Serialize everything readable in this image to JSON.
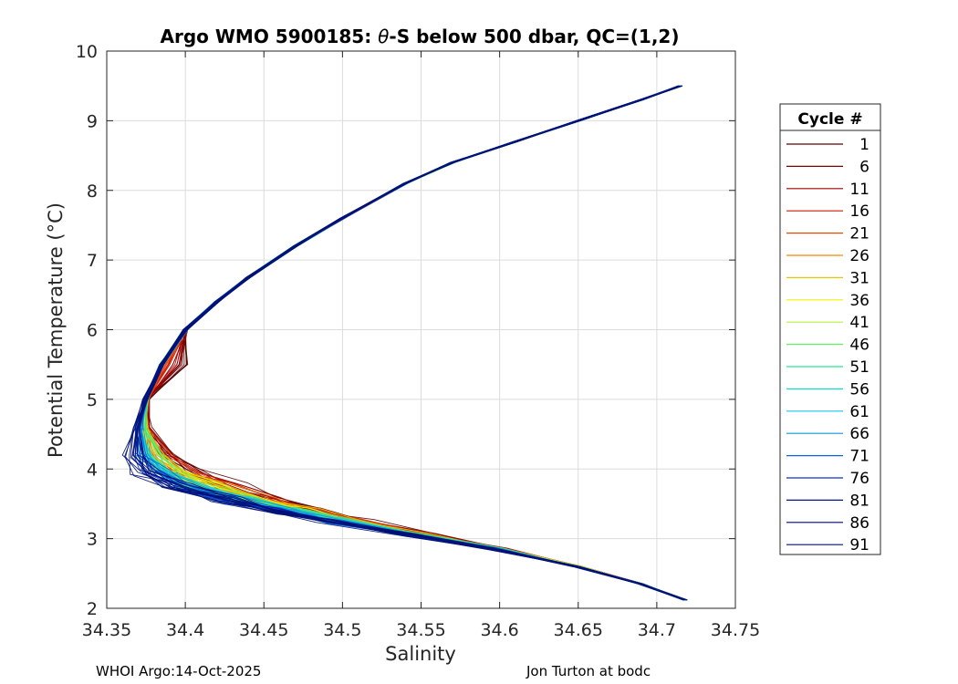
{
  "chart_data": {
    "type": "line",
    "title_prefix": "Argo WMO 5900185: ",
    "title_theta": "θ",
    "title_suffix": "-S below 500 dbar,  QC=(1,2)",
    "xlabel": "Salinity",
    "ylabel": "Potential Temperature (°C)",
    "xlim": [
      34.35,
      34.75
    ],
    "ylim": [
      2,
      10
    ],
    "xticks": [
      "34.35",
      "34.4",
      "34.45",
      "34.5",
      "34.55",
      "34.6",
      "34.65",
      "34.7",
      "34.75"
    ],
    "yticks": [
      "2",
      "3",
      "4",
      "5",
      "6",
      "7",
      "8",
      "9",
      "10"
    ],
    "grid": true,
    "legend_title": "Cycle #",
    "legend_position": "outside-right",
    "series": [
      {
        "name": "1",
        "color": "#5a0000"
      },
      {
        "name": "6",
        "color": "#7a0000"
      },
      {
        "name": "11",
        "color": "#a00000"
      },
      {
        "name": "16",
        "color": "#cc1a00"
      },
      {
        "name": "21",
        "color": "#e84a00"
      },
      {
        "name": "26",
        "color": "#f08c00"
      },
      {
        "name": "31",
        "color": "#e6c800"
      },
      {
        "name": "36",
        "color": "#f2f000"
      },
      {
        "name": "41",
        "color": "#b4f03c"
      },
      {
        "name": "46",
        "color": "#64f064"
      },
      {
        "name": "51",
        "color": "#28e896"
      },
      {
        "name": "56",
        "color": "#14dcc8"
      },
      {
        "name": "61",
        "color": "#14c8e6"
      },
      {
        "name": "66",
        "color": "#0a96dc"
      },
      {
        "name": "71",
        "color": "#0a64dc"
      },
      {
        "name": "76",
        "color": "#0a32c8"
      },
      {
        "name": "81",
        "color": "#00148c"
      },
      {
        "name": "86",
        "color": "#000a6e"
      },
      {
        "name": "91",
        "color": "#001478"
      }
    ],
    "mean_profile": {
      "salinity": [
        34.715,
        34.69,
        34.65,
        34.61,
        34.57,
        34.54,
        34.5,
        34.47,
        34.44,
        34.42,
        34.4,
        34.385,
        34.375,
        34.372,
        34.378,
        34.39,
        34.41,
        34.44,
        34.47,
        34.5,
        34.55,
        34.6,
        34.65,
        34.69,
        34.718
      ],
      "temperature": [
        9.5,
        9.3,
        9.0,
        8.7,
        8.4,
        8.1,
        7.6,
        7.2,
        6.75,
        6.4,
        6.0,
        5.5,
        5.0,
        4.6,
        4.2,
        3.95,
        3.75,
        3.55,
        3.4,
        3.25,
        3.05,
        2.85,
        2.6,
        2.35,
        2.12
      ]
    }
  },
  "footer": {
    "left": "WHOI Argo:14-Oct-2025",
    "right": "Jon Turton at bodc"
  }
}
